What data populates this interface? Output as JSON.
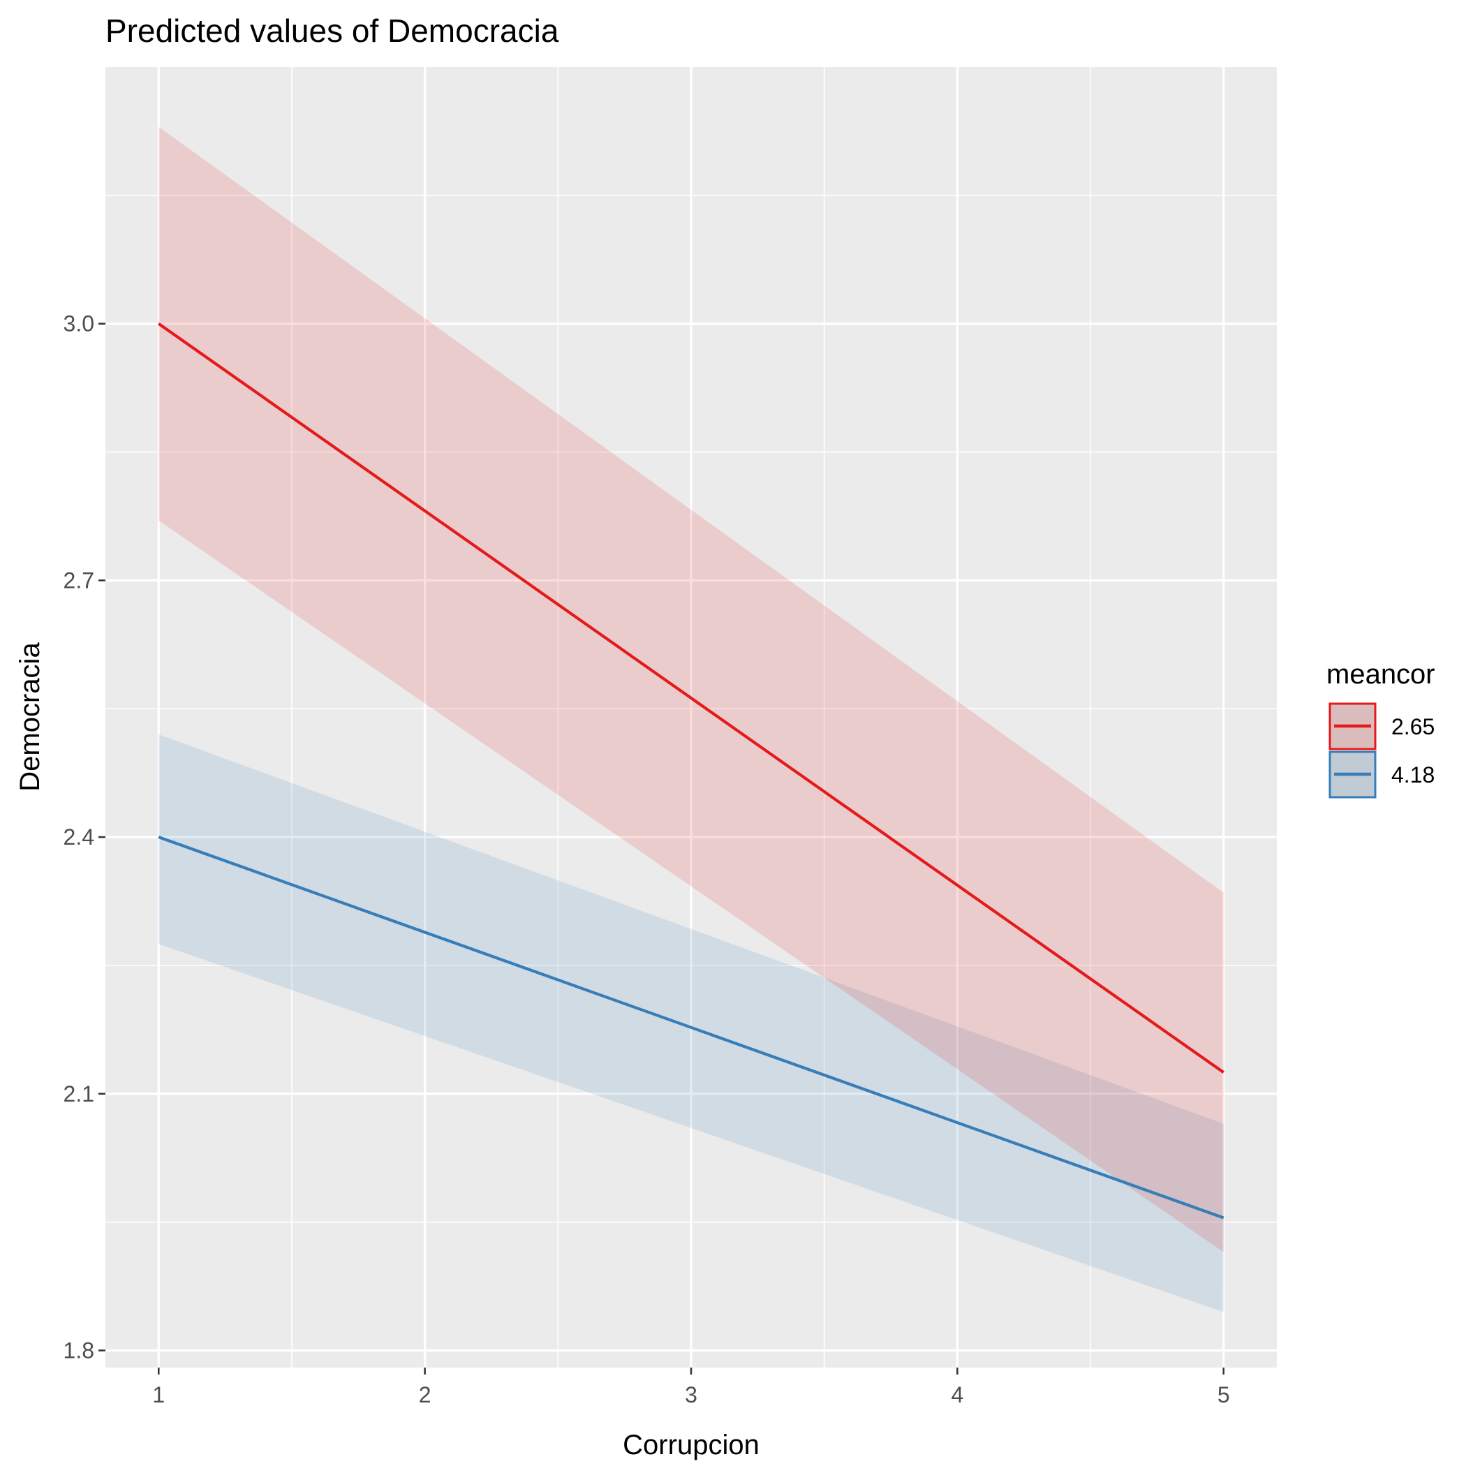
{
  "chart_data": {
    "type": "line",
    "title": "Predicted values of Democracia",
    "xlabel": "Corrupcion",
    "ylabel": "Democracia",
    "xlim": [
      0.8,
      5.2
    ],
    "ylim": [
      1.78,
      3.3
    ],
    "x_ticks": [
      1,
      2,
      3,
      4,
      5
    ],
    "x_tick_labels": [
      "1",
      "2",
      "3",
      "4",
      "5"
    ],
    "y_ticks": [
      1.8,
      2.1,
      2.4,
      2.7,
      3.0
    ],
    "y_tick_labels": [
      "1.8",
      "2.1",
      "2.4",
      "2.7",
      "3.0"
    ],
    "grid": true,
    "legend": {
      "title": "meancor",
      "position": "right"
    },
    "series": [
      {
        "name": "2.65",
        "color": "#e41a1c",
        "x": [
          1,
          5
        ],
        "y": [
          3.0,
          2.125
        ],
        "ci_low": [
          2.77,
          1.915
        ],
        "ci_high": [
          3.23,
          2.335
        ]
      },
      {
        "name": "4.18",
        "color": "#377eb8",
        "x": [
          1,
          5
        ],
        "y": [
          2.4,
          1.955
        ],
        "ci_low": [
          2.275,
          1.845
        ],
        "ci_high": [
          2.52,
          2.065
        ]
      }
    ]
  }
}
